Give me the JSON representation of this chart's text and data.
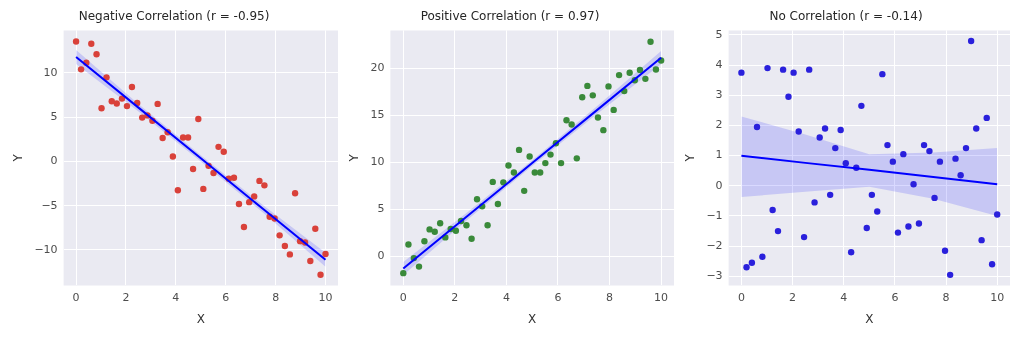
{
  "chart_data": [
    {
      "type": "scatter",
      "title": "Negative Correlation (r = -0.95)",
      "xlabel": "X",
      "ylabel": "Y",
      "xlim": [
        -0.5,
        10.5
      ],
      "ylim": [
        -14,
        14.8
      ],
      "xticks": [
        0,
        2,
        4,
        6,
        8,
        10
      ],
      "yticks": [
        {
          "value": -10,
          "label": "−10"
        },
        {
          "value": -5,
          "label": "−5"
        },
        0,
        5,
        10
      ],
      "grid": true,
      "x": [
        0,
        0.2,
        0.41,
        0.61,
        0.82,
        1.02,
        1.22,
        1.43,
        1.63,
        1.84,
        2.04,
        2.24,
        2.45,
        2.65,
        2.86,
        3.06,
        3.27,
        3.47,
        3.67,
        3.88,
        4.08,
        4.29,
        4.49,
        4.69,
        4.9,
        5.1,
        5.31,
        5.51,
        5.71,
        5.92,
        6.12,
        6.33,
        6.53,
        6.73,
        6.94,
        7.14,
        7.35,
        7.55,
        7.76,
        7.96,
        8.16,
        8.37,
        8.57,
        8.78,
        8.98,
        9.18,
        9.39,
        9.59,
        9.8,
        10
      ],
      "series": [
        {
          "marker": "circle",
          "color": "#d9413a",
          "values": [
            13.55,
            10.4,
            11.15,
            13.3,
            12.1,
            6.0,
            9.5,
            6.8,
            6.55,
            7.1,
            6.25,
            8.4,
            6.6,
            4.95,
            5.2,
            4.6,
            6.5,
            2.65,
            3.3,
            0.55,
            -3.25,
            2.7,
            2.7,
            -0.85,
            4.8,
            -3.1,
            -0.5,
            -1.3,
            1.65,
            1.1,
            -1.95,
            -1.85,
            -4.8,
            -7.4,
            -4.6,
            -3.95,
            -2.2,
            -2.7,
            -6.25,
            -6.45,
            -8.35,
            -9.55,
            -10.5,
            -3.6,
            -9.0,
            -9.15,
            -11.25,
            -7.6,
            -12.8,
            -10.45
          ]
        },
        {
          "type": "line",
          "marker": "none",
          "color": "#0000ff",
          "x": [
            0,
            2.5,
            5,
            7.5,
            10
          ],
          "values": [
            11.8,
            6.08,
            0.35,
            -5.38,
            -11.1
          ],
          "lower": [
            11.0,
            5.65,
            0.0,
            -5.8,
            -11.9
          ],
          "upper": [
            12.6,
            6.5,
            0.7,
            -4.95,
            -10.3
          ]
        }
      ]
    },
    {
      "type": "scatter",
      "title": "Positive Correlation (r = 0.97)",
      "xlabel": "X",
      "ylabel": "Y",
      "xlim": [
        -0.5,
        10.5
      ],
      "ylim": [
        -3.1,
        24
      ],
      "xticks": [
        0,
        2,
        4,
        6,
        8,
        10
      ],
      "yticks": [
        0,
        5,
        10,
        15,
        20
      ],
      "grid": true,
      "x": [
        0,
        0.2,
        0.41,
        0.61,
        0.82,
        1.02,
        1.22,
        1.43,
        1.63,
        1.84,
        2.04,
        2.24,
        2.45,
        2.65,
        2.86,
        3.06,
        3.27,
        3.47,
        3.67,
        3.88,
        4.08,
        4.29,
        4.49,
        4.69,
        4.9,
        5.1,
        5.31,
        5.51,
        5.71,
        5.92,
        6.12,
        6.33,
        6.53,
        6.73,
        6.94,
        7.14,
        7.35,
        7.55,
        7.76,
        7.96,
        8.16,
        8.37,
        8.57,
        8.78,
        8.98,
        9.18,
        9.39,
        9.59,
        9.8,
        10
      ],
      "series": [
        {
          "marker": "circle",
          "color": "#3a8a3a",
          "values": [
            -1.8,
            1.25,
            -0.2,
            -1.1,
            1.6,
            2.85,
            2.6,
            3.5,
            2.0,
            2.9,
            2.7,
            3.75,
            3.3,
            1.85,
            6.05,
            5.3,
            3.3,
            7.9,
            5.55,
            7.85,
            9.65,
            8.9,
            11.3,
            6.95,
            10.6,
            8.9,
            8.9,
            9.9,
            10.8,
            12.0,
            9.9,
            14.45,
            14.0,
            10.4,
            16.9,
            18.1,
            17.1,
            14.75,
            13.4,
            18.05,
            15.55,
            19.25,
            17.55,
            19.5,
            18.7,
            19.8,
            18.85,
            22.8,
            19.85,
            20.8
          ]
        },
        {
          "type": "line",
          "marker": "none",
          "color": "#0000ff",
          "x": [
            0,
            2.5,
            5,
            7.5,
            10
          ],
          "values": [
            -1.3,
            4.3,
            9.9,
            15.5,
            21.1
          ],
          "lower": [
            -2.0,
            3.9,
            9.6,
            15.1,
            20.4
          ],
          "upper": [
            -0.6,
            4.7,
            10.2,
            15.9,
            21.8
          ]
        }
      ]
    },
    {
      "type": "scatter",
      "title": "No Correlation (r = -0.14)",
      "xlabel": "X",
      "ylabel": "Y",
      "xlim": [
        -0.5,
        10.5
      ],
      "ylim": [
        -3.3,
        5.15
      ],
      "xticks": [
        0,
        2,
        4,
        6,
        8,
        10
      ],
      "yticks": [
        {
          "value": -3,
          "label": "−3"
        },
        {
          "value": -2,
          "label": "−2"
        },
        {
          "value": -1,
          "label": "−1"
        },
        0,
        1,
        2,
        3,
        4,
        5
      ],
      "grid": true,
      "x": [
        0,
        0.2,
        0.41,
        0.61,
        0.82,
        1.02,
        1.22,
        1.43,
        1.63,
        1.84,
        2.04,
        2.24,
        2.45,
        2.65,
        2.86,
        3.06,
        3.27,
        3.47,
        3.67,
        3.88,
        4.08,
        4.29,
        4.49,
        4.69,
        4.9,
        5.1,
        5.31,
        5.51,
        5.71,
        5.92,
        6.12,
        6.33,
        6.53,
        6.73,
        6.94,
        7.14,
        7.35,
        7.55,
        7.76,
        7.96,
        8.16,
        8.37,
        8.57,
        8.78,
        8.98,
        9.18,
        9.39,
        9.59,
        9.8,
        10
      ],
      "series": [
        {
          "marker": "circle",
          "color": "#2a20dc",
          "values": [
            3.75,
            -2.7,
            -2.55,
            1.95,
            -2.35,
            3.9,
            -0.8,
            -1.5,
            3.85,
            2.95,
            3.75,
            1.8,
            -1.7,
            3.85,
            -0.55,
            1.6,
            1.9,
            -0.3,
            1.25,
            1.85,
            0.75,
            -2.2,
            0.6,
            2.65,
            -1.4,
            -0.3,
            -0.85,
            3.7,
            1.35,
            0.8,
            -1.55,
            1.05,
            -1.35,
            0.05,
            -1.25,
            1.35,
            1.15,
            -0.4,
            0.8,
            -2.15,
            -2.95,
            0.9,
            0.35,
            1.25,
            4.8,
            1.9,
            -1.8,
            2.25,
            -2.6,
            -0.95
          ]
        },
        {
          "type": "line",
          "marker": "none",
          "color": "#0000ff",
          "x": [
            0,
            2.5,
            5,
            7.5,
            10
          ],
          "values": [
            1.0,
            0.76,
            0.53,
            0.29,
            0.05
          ],
          "lower": [
            -0.37,
            -0.2,
            -0.03,
            -0.43,
            -1.0
          ],
          "upper": [
            2.3,
            1.7,
            1.05,
            1.1,
            1.25
          ]
        }
      ]
    }
  ]
}
